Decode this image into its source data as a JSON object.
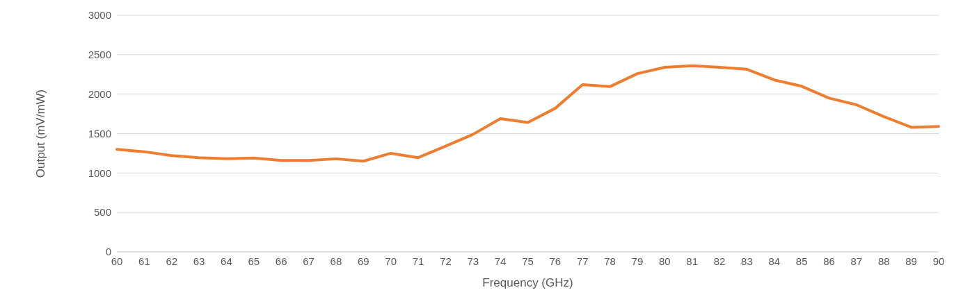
{
  "chart_data": {
    "type": "line",
    "xlabel": "Frequency (GHz)",
    "ylabel": "Output (mV/mW)",
    "categories": [
      "60",
      "61",
      "62",
      "63",
      "64",
      "65",
      "66",
      "67",
      "68",
      "69",
      "70",
      "71",
      "72",
      "73",
      "74",
      "75",
      "76",
      "77",
      "78",
      "79",
      "80",
      "81",
      "82",
      "83",
      "84",
      "85",
      "86",
      "87",
      "88",
      "89",
      "90"
    ],
    "series": [
      {
        "color": "#ed7d31",
        "values": [
          1300,
          1270,
          1220,
          1195,
          1180,
          1190,
          1160,
          1160,
          1180,
          1150,
          1250,
          1195,
          1340,
          1490,
          1690,
          1640,
          1820,
          2120,
          2095,
          2260,
          2340,
          2360,
          2340,
          2315,
          2180,
          2100,
          1950,
          1865,
          1715,
          1580,
          1590
        ]
      }
    ],
    "ylim": [
      0,
      3000
    ],
    "yticks": [
      0,
      500,
      1000,
      1500,
      2000,
      2500,
      3000
    ],
    "grid": "y",
    "legend": false,
    "marker": "none",
    "line_style": "solid"
  }
}
